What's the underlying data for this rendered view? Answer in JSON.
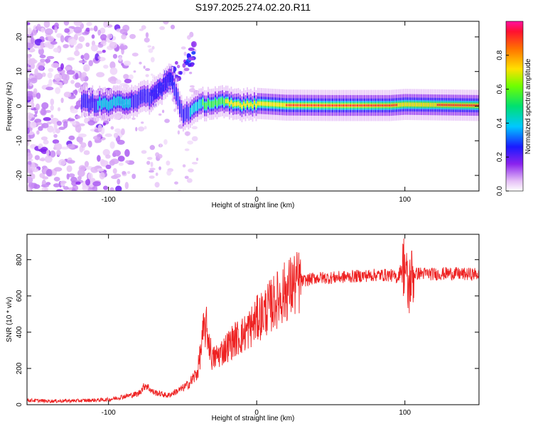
{
  "title": "S197.2025.274.02.20.R11",
  "chart_data": [
    {
      "type": "heatmap",
      "name": "spectrogram",
      "xlabel": "Height of straight line (km)",
      "ylabel": "Frequency (Hz)",
      "xlim": [
        -155,
        150
      ],
      "ylim": [
        -24.5,
        24.5
      ],
      "xticks": [
        -100,
        0,
        100
      ],
      "xtick_labels": [
        "-100",
        "0",
        "100"
      ],
      "yticks": [
        -20,
        -10,
        0,
        10,
        20
      ],
      "ytick_labels": [
        "-20",
        "-10",
        "0",
        "10",
        "20"
      ],
      "colorbar": {
        "label": "Normalized spectral amplitude",
        "range": [
          0,
          1
        ],
        "ticks": [
          0.0,
          0.2,
          0.4,
          0.6,
          0.8
        ],
        "tick_labels": [
          "0.0",
          "0.2",
          "0.4",
          "0.6",
          "0.8"
        ]
      },
      "ridge": [
        {
          "x": -115,
          "f": 1.0,
          "amp": 0.35
        },
        {
          "x": -100,
          "f": 0.5,
          "amp": 0.45
        },
        {
          "x": -85,
          "f": 1.5,
          "amp": 0.4
        },
        {
          "x": -70,
          "f": 3.0,
          "amp": 0.35
        },
        {
          "x": -58,
          "f": 8.0,
          "amp": 0.3
        },
        {
          "x": -50,
          "f": -2.5,
          "amp": 0.3
        },
        {
          "x": -35,
          "f": 0.8,
          "amp": 0.6
        },
        {
          "x": -25,
          "f": 1.0,
          "amp": 0.7
        },
        {
          "x": -15,
          "f": 0.5,
          "amp": 0.75
        },
        {
          "x": 0,
          "f": 0.8,
          "amp": 0.8
        },
        {
          "x": 20,
          "f": 0.3,
          "amp": 0.9
        },
        {
          "x": 50,
          "f": 0.2,
          "amp": 0.97
        },
        {
          "x": 90,
          "f": 0.2,
          "amp": 0.95
        },
        {
          "x": 100,
          "f": 0.5,
          "amp": 0.85
        },
        {
          "x": 150,
          "f": 0.2,
          "amp": 0.97
        }
      ]
    },
    {
      "type": "line",
      "name": "snr",
      "xlabel": "Height of straight line (km)",
      "ylabel": "SNR (10 * v/v)",
      "xlim": [
        -155,
        150
      ],
      "ylim": [
        0,
        940
      ],
      "xticks": [
        -100,
        0,
        100
      ],
      "xtick_labels": [
        "-100",
        "0",
        "100"
      ],
      "yticks": [
        0,
        200,
        400,
        600,
        800
      ],
      "ytick_labels": [
        "0",
        "200",
        "400",
        "600",
        "800"
      ],
      "series": [
        {
          "name": "SNR",
          "color": "#ee2222",
          "x": [
            -155,
            -140,
            -120,
            -100,
            -90,
            -80,
            -75,
            -70,
            -60,
            -50,
            -45,
            -40,
            -38,
            -36,
            -34,
            -30,
            -25,
            -20,
            -15,
            -10,
            -5,
            0,
            5,
            10,
            15,
            20,
            25,
            30,
            40,
            50,
            60,
            70,
            80,
            90,
            95,
            98,
            100,
            102,
            104,
            106,
            110,
            120,
            130,
            140,
            150
          ],
          "y": [
            25,
            20,
            22,
            28,
            45,
            60,
            110,
            70,
            50,
            90,
            120,
            180,
            280,
            400,
            430,
            250,
            280,
            320,
            360,
            380,
            420,
            470,
            510,
            550,
            590,
            630,
            660,
            680,
            700,
            700,
            705,
            710,
            715,
            715,
            700,
            760,
            780,
            620,
            700,
            720,
            725,
            720,
            725,
            720,
            720
          ]
        }
      ]
    }
  ]
}
